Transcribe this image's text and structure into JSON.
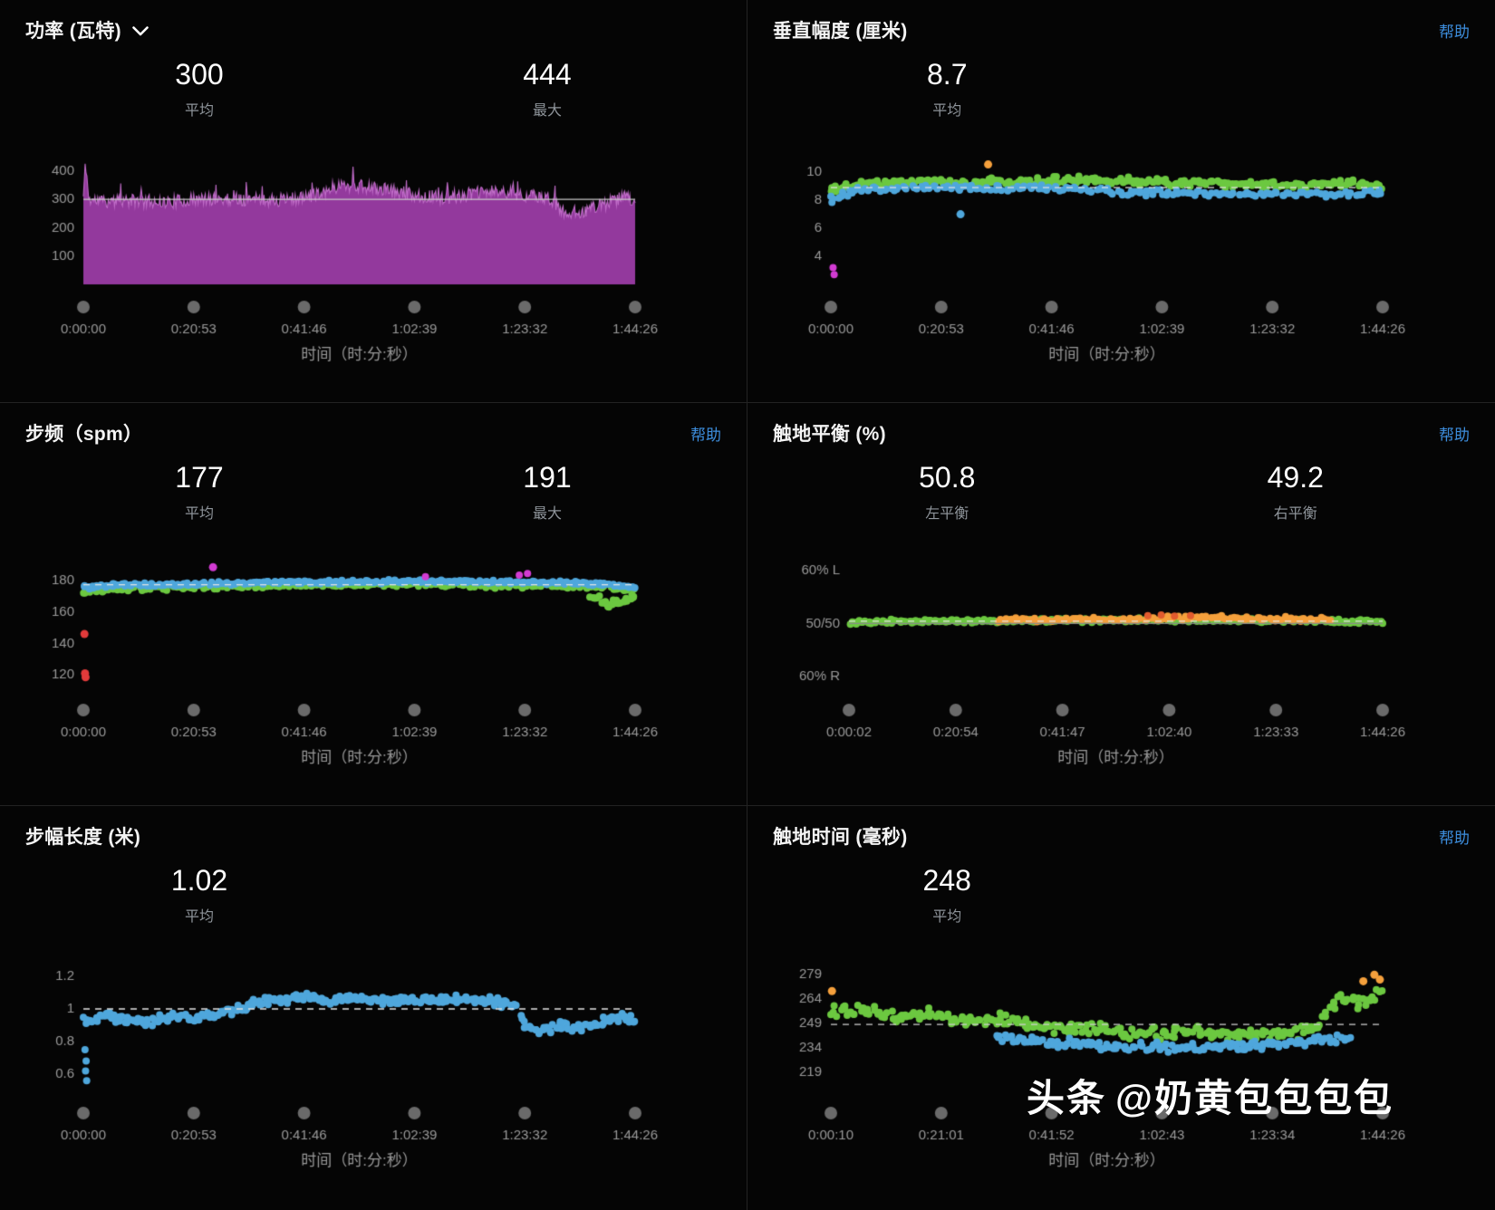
{
  "watermark": {
    "brand": "头条",
    "handle": "@奶黄包包包包"
  },
  "panels": [
    {
      "title": "功率 (瓦特)",
      "stats": [
        {
          "value": "300",
          "label": "平均"
        },
        {
          "value": "444",
          "label": "最大"
        }
      ]
    },
    {
      "title": "垂直幅度 (厘米)",
      "help": "帮助",
      "stats": [
        {
          "value": "8.7",
          "label": "平均"
        }
      ]
    },
    {
      "title": "步频（spm）",
      "help": "帮助",
      "stats": [
        {
          "value": "177",
          "label": "平均"
        },
        {
          "value": "191",
          "label": "最大"
        }
      ]
    },
    {
      "title": "触地平衡 (%)",
      "help": "帮助",
      "stats": [
        {
          "value": "50.8",
          "label": "左平衡"
        },
        {
          "value": "49.2",
          "label": "右平衡"
        }
      ]
    },
    {
      "title": "步幅长度 (米)",
      "stats": [
        {
          "value": "1.02",
          "label": "平均"
        }
      ]
    },
    {
      "title": "触地时间 (毫秒)",
      "help": "帮助",
      "stats": [
        {
          "value": "248",
          "label": "平均"
        }
      ]
    }
  ],
  "chart_data": [
    {
      "type": "area",
      "title": "功率 (瓦特)",
      "seed": 11,
      "ylim": [
        0,
        460
      ],
      "yticks": [
        100,
        200,
        300,
        400
      ],
      "xticks": [
        "0:00:00",
        "0:20:53",
        "0:41:46",
        "1:02:39",
        "1:23:32",
        "1:44:26"
      ],
      "xlabel": "时间（时:分:秒）",
      "avg": 300,
      "max": 444,
      "lines": [
        {
          "v": 300,
          "style": "solid",
          "color": "#c8c8c8"
        }
      ],
      "area": {
        "fill": "#93399d",
        "stroke": "#c06cc8",
        "noise": 24,
        "points": 620,
        "controls": [
          [
            0,
            310
          ],
          [
            0.004,
            432
          ],
          [
            0.01,
            298
          ],
          [
            0.05,
            292
          ],
          [
            0.1,
            296
          ],
          [
            0.15,
            290
          ],
          [
            0.2,
            298
          ],
          [
            0.25,
            302
          ],
          [
            0.3,
            300
          ],
          [
            0.35,
            297
          ],
          [
            0.4,
            305
          ],
          [
            0.44,
            332
          ],
          [
            0.47,
            352
          ],
          [
            0.5,
            345
          ],
          [
            0.53,
            338
          ],
          [
            0.56,
            330
          ],
          [
            0.6,
            315
          ],
          [
            0.65,
            305
          ],
          [
            0.7,
            318
          ],
          [
            0.74,
            328
          ],
          [
            0.78,
            322
          ],
          [
            0.82,
            308
          ],
          [
            0.85,
            298
          ],
          [
            0.87,
            252
          ],
          [
            0.9,
            256
          ],
          [
            0.93,
            275
          ],
          [
            0.96,
            292
          ],
          [
            0.98,
            312
          ],
          [
            1,
            295
          ]
        ]
      }
    },
    {
      "type": "scatter",
      "title": "垂直幅度 (厘米)",
      "seed": 22,
      "ylim": [
        2,
        11.3
      ],
      "yticks": [
        4,
        6,
        8,
        10
      ],
      "xticks": [
        "0:00:00",
        "0:20:53",
        "0:41:46",
        "1:02:39",
        "1:23:32",
        "1:44:26"
      ],
      "xlabel": "时间（时:分:秒）",
      "avg": 8.7,
      "lines": [
        {
          "v": 8.9,
          "style": "dashed",
          "color": "#e3e3e3"
        }
      ],
      "series": [
        {
          "name": "green",
          "color": "#6cc840",
          "count": 240,
          "jitter": 0.33,
          "r": 4,
          "controls": [
            [
              0,
              8.8
            ],
            [
              0.05,
              9.2
            ],
            [
              0.15,
              9.3
            ],
            [
              0.3,
              9.3
            ],
            [
              0.45,
              9.45
            ],
            [
              0.6,
              9.3
            ],
            [
              0.75,
              9.15
            ],
            [
              0.85,
              9.05
            ],
            [
              0.95,
              9.2
            ],
            [
              1,
              9.1
            ]
          ]
        },
        {
          "name": "blue",
          "color": "#4fa7dc",
          "count": 180,
          "jitter": 0.27,
          "r": 4,
          "controls": [
            [
              0,
              8.2
            ],
            [
              0.05,
              8.7
            ],
            [
              0.2,
              8.9
            ],
            [
              0.4,
              8.85
            ],
            [
              0.55,
              8.6
            ],
            [
              0.7,
              8.45
            ],
            [
              0.85,
              8.4
            ],
            [
              1,
              8.5
            ]
          ]
        }
      ],
      "outliers": [
        {
          "x": 0.285,
          "y": 10.55,
          "color": "#f5a03c",
          "r": 4.5
        },
        {
          "x": 0.235,
          "y": 7.0,
          "color": "#4fa7dc",
          "r": 4.5
        },
        {
          "x": 0.002,
          "y": 7.85,
          "color": "#4fa7dc",
          "r": 4
        },
        {
          "x": 0.004,
          "y": 3.2,
          "color": "#d23bd2",
          "r": 4
        },
        {
          "x": 0.006,
          "y": 2.7,
          "color": "#d23bd2",
          "r": 4
        }
      ]
    },
    {
      "type": "scatter",
      "title": "步频（spm）",
      "seed": 33,
      "ylim": [
        112,
        195
      ],
      "yticks": [
        120,
        140,
        160,
        180
      ],
      "xticks": [
        "0:00:00",
        "0:20:53",
        "0:41:46",
        "1:02:39",
        "1:23:32",
        "1:44:26"
      ],
      "xlabel": "时间（时:分:秒）",
      "avg": 177,
      "max": 191,
      "lines": [
        {
          "v": 177.3,
          "style": "dashed",
          "color": "#e3e3e3"
        }
      ],
      "series": [
        {
          "name": "green",
          "color": "#6cc840",
          "count": 150,
          "jitter": 1.6,
          "r": 4,
          "controls": [
            [
              0,
              171.5
            ],
            [
              0.04,
              173.5
            ],
            [
              0.12,
              175
            ],
            [
              0.25,
              176
            ],
            [
              0.45,
              177
            ],
            [
              0.65,
              177
            ],
            [
              0.85,
              176
            ],
            [
              1,
              174.5
            ]
          ]
        },
        {
          "name": "blue",
          "color": "#4fa7dc",
          "count": 280,
          "jitter": 1.3,
          "r": 4,
          "controls": [
            [
              0,
              175.5
            ],
            [
              0.05,
              177
            ],
            [
              0.15,
              177.5
            ],
            [
              0.3,
              178.5
            ],
            [
              0.45,
              179
            ],
            [
              0.6,
              179.5
            ],
            [
              0.75,
              179
            ],
            [
              0.9,
              178.5
            ],
            [
              0.97,
              177
            ],
            [
              1,
              175.5
            ]
          ]
        },
        {
          "name": "green-end",
          "color": "#6cc840",
          "count": 26,
          "jitter": 2.6,
          "r": 4,
          "xstart": 0.92,
          "xend": 1,
          "controls": [
            [
              0.92,
              171
            ],
            [
              0.95,
              165
            ],
            [
              0.97,
              166
            ],
            [
              1,
              170
            ]
          ]
        }
      ],
      "outliers": [
        {
          "x": 0.235,
          "y": 188.5,
          "color": "#d23bd2",
          "r": 4.5
        },
        {
          "x": 0.62,
          "y": 182.5,
          "color": "#d23bd2",
          "r": 4
        },
        {
          "x": 0.79,
          "y": 183.5,
          "color": "#d23bd2",
          "r": 4
        },
        {
          "x": 0.805,
          "y": 184.5,
          "color": "#d23bd2",
          "r": 4
        },
        {
          "x": 0.002,
          "y": 146,
          "color": "#e23b3b",
          "r": 4.5
        },
        {
          "x": 0.003,
          "y": 121,
          "color": "#e23b3b",
          "r": 4.5
        },
        {
          "x": 0.004,
          "y": 118.5,
          "color": "#e23b3b",
          "r": 4.5
        }
      ]
    },
    {
      "type": "scatter",
      "title": "触地平衡 (%)",
      "seed": 44,
      "ml": 84,
      "ylim": [
        38,
        62.5
      ],
      "yticks": [
        60,
        50,
        40
      ],
      "ytick_labels": [
        "60% L",
        "50/50",
        "60% R"
      ],
      "xticks": [
        "0:00:02",
        "0:20:54",
        "0:41:47",
        "1:02:40",
        "1:23:33",
        "1:44:26"
      ],
      "xlabel": "时间（时:分:秒）",
      "left_balance": 50.8,
      "right_balance": 49.2,
      "lines": [
        {
          "v": 50,
          "style": "solid",
          "color": "#8a8a8a"
        },
        {
          "v": 50.45,
          "style": "dashed",
          "color": "#e3e3e3"
        }
      ],
      "series": [
        {
          "name": "green",
          "color": "#6cc840",
          "count": 260,
          "jitter": 0.45,
          "r": 4,
          "controls": [
            [
              0,
              50.2
            ],
            [
              0.1,
              50.4
            ],
            [
              0.2,
              50.45
            ],
            [
              0.3,
              50.5
            ],
            [
              0.4,
              50.55
            ],
            [
              0.5,
              50.6
            ],
            [
              0.6,
              50.7
            ],
            [
              0.7,
              50.7
            ],
            [
              0.8,
              50.6
            ],
            [
              0.9,
              50.45
            ],
            [
              1,
              50.4
            ]
          ]
        },
        {
          "name": "orange",
          "color": "#f5a03c",
          "count": 110,
          "jitter": 0.5,
          "r": 4,
          "xstart": 0.28,
          "xend": 0.9,
          "controls": [
            [
              0.28,
              50.6
            ],
            [
              0.4,
              50.7
            ],
            [
              0.5,
              50.8
            ],
            [
              0.6,
              51.0
            ],
            [
              0.68,
              51.2
            ],
            [
              0.75,
              51.0
            ],
            [
              0.82,
              50.9
            ],
            [
              0.9,
              50.7
            ]
          ]
        }
      ],
      "outliers": [
        {
          "x": 0.56,
          "y": 51.5,
          "color": "#e05b2e",
          "r": 4
        },
        {
          "x": 0.585,
          "y": 51.6,
          "color": "#e05b2e",
          "r": 4
        },
        {
          "x": 0.61,
          "y": 51.4,
          "color": "#e05b2e",
          "r": 4
        },
        {
          "x": 0.64,
          "y": 51.5,
          "color": "#e05b2e",
          "r": 4
        }
      ]
    },
    {
      "type": "scatter",
      "title": "步幅长度 (米)",
      "seed": 55,
      "ylim": [
        0.5,
        1.3
      ],
      "yticks": [
        0.6,
        0.8,
        1,
        1.2
      ],
      "ytick_labels": [
        "0.6",
        "0.8",
        "1",
        "1.2"
      ],
      "xticks": [
        "0:00:00",
        "0:20:53",
        "0:41:46",
        "1:02:39",
        "1:23:32",
        "1:44:26"
      ],
      "xlabel": "时间（时:分:秒）",
      "avg": 1.02,
      "lines": [
        {
          "v": 1.0,
          "style": "dashed",
          "color": "#e3e3e3"
        }
      ],
      "series": [
        {
          "name": "blue",
          "color": "#4fa7dc",
          "count": 320,
          "jitter": 0.032,
          "r": 4,
          "controls": [
            [
              0,
              0.93
            ],
            [
              0.04,
              0.96
            ],
            [
              0.08,
              0.93
            ],
            [
              0.12,
              0.92
            ],
            [
              0.16,
              0.95
            ],
            [
              0.2,
              0.95
            ],
            [
              0.24,
              0.96
            ],
            [
              0.28,
              1.0
            ],
            [
              0.32,
              1.05
            ],
            [
              0.36,
              1.06
            ],
            [
              0.4,
              1.07
            ],
            [
              0.44,
              1.05
            ],
            [
              0.48,
              1.07
            ],
            [
              0.52,
              1.06
            ],
            [
              0.56,
              1.04
            ],
            [
              0.6,
              1.06
            ],
            [
              0.64,
              1.05
            ],
            [
              0.68,
              1.06
            ],
            [
              0.72,
              1.05
            ],
            [
              0.76,
              1.04
            ],
            [
              0.79,
              1.02
            ],
            [
              0.8,
              0.89
            ],
            [
              0.84,
              0.87
            ],
            [
              0.87,
              0.9
            ],
            [
              0.9,
              0.88
            ],
            [
              0.93,
              0.91
            ],
            [
              0.96,
              0.94
            ],
            [
              1,
              0.95
            ]
          ]
        }
      ],
      "outliers": [
        {
          "x": 0.003,
          "y": 0.75,
          "color": "#4fa7dc",
          "r": 4
        },
        {
          "x": 0.005,
          "y": 0.68,
          "color": "#4fa7dc",
          "r": 4
        },
        {
          "x": 0.004,
          "y": 0.62,
          "color": "#4fa7dc",
          "r": 4
        },
        {
          "x": 0.006,
          "y": 0.56,
          "color": "#4fa7dc",
          "r": 4
        }
      ]
    },
    {
      "type": "scatter",
      "title": "触地时间 (毫秒)",
      "seed": 66,
      "ylim": [
        208,
        288
      ],
      "yticks": [
        219,
        234,
        249,
        264,
        279
      ],
      "xticks": [
        "0:00:10",
        "0:21:01",
        "0:41:52",
        "1:02:43",
        "1:23:34",
        "1:44:26"
      ],
      "xlabel": "时间（时:分:秒）",
      "avg": 248,
      "lines": [
        {
          "v": 248.5,
          "style": "dashed",
          "color": "#cfcfcf"
        }
      ],
      "series": [
        {
          "name": "green",
          "color": "#6cc840",
          "count": 250,
          "jitter": 4.5,
          "r": 4,
          "controls": [
            [
              0,
              258
            ],
            [
              0.06,
              257
            ],
            [
              0.12,
              254
            ],
            [
              0.18,
              255
            ],
            [
              0.24,
              251
            ],
            [
              0.3,
              252
            ],
            [
              0.36,
              248
            ],
            [
              0.42,
              246
            ],
            [
              0.48,
              246
            ],
            [
              0.54,
              244
            ],
            [
              0.6,
              243
            ],
            [
              0.66,
              244
            ],
            [
              0.72,
              242
            ],
            [
              0.78,
              243
            ],
            [
              0.84,
              243
            ],
            [
              0.88,
              247
            ],
            [
              0.9,
              258
            ],
            [
              0.92,
              264
            ],
            [
              0.94,
              266
            ],
            [
              0.96,
              260
            ],
            [
              0.98,
              264
            ],
            [
              1,
              270
            ]
          ]
        },
        {
          "name": "blue",
          "color": "#4fa7dc",
          "count": 160,
          "jitter": 3.5,
          "r": 4,
          "xstart": 0.3,
          "xend": 0.94,
          "controls": [
            [
              0.3,
              241
            ],
            [
              0.38,
              238
            ],
            [
              0.46,
              236
            ],
            [
              0.54,
              235
            ],
            [
              0.62,
              234
            ],
            [
              0.7,
              234
            ],
            [
              0.78,
              236
            ],
            [
              0.86,
              238
            ],
            [
              0.94,
              240
            ]
          ]
        }
      ],
      "outliers": [
        {
          "x": 0.002,
          "y": 269,
          "color": "#f5a03c",
          "r": 4.5
        },
        {
          "x": 0.965,
          "y": 275,
          "color": "#f5a03c",
          "r": 4.5
        },
        {
          "x": 0.985,
          "y": 279,
          "color": "#f5a03c",
          "r": 4.5
        },
        {
          "x": 0.995,
          "y": 276,
          "color": "#f5a03c",
          "r": 4.5
        }
      ]
    }
  ]
}
